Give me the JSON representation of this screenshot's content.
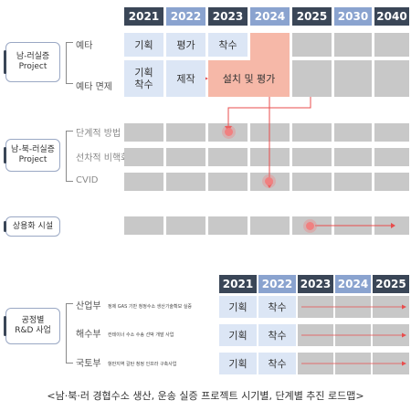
{
  "top_years": [
    "2021",
    "2022",
    "2023",
    "2024",
    "2025",
    "2030",
    "2040"
  ],
  "bottom_years": [
    "2021",
    "2022",
    "2023",
    "2024",
    "2025"
  ],
  "sections": {
    "s1": {
      "label_line1": "남-러실증",
      "label_line2": "Project",
      "rows": [
        "예타",
        "예타 면제"
      ]
    },
    "s2": {
      "label_line1": "남-북-러실증",
      "label_line2": "Project",
      "rows": [
        "단계적 방법",
        "선차적 비핵화",
        "CVID"
      ]
    },
    "s3": {
      "label": "상용화 시설"
    },
    "s4": {
      "label_line1": "공정별",
      "label_line2": "R&D 사업",
      "rows": [
        {
          "ministry": "산업부",
          "desc": "정제 GAS 기반 청정수소 생산기술확보 실증"
        },
        {
          "ministry": "해수부",
          "desc": "컨테이너 수소 수송 선박 개발 사업"
        },
        {
          "ministry": "국토부",
          "desc": "항만지역 갈탄 청정 인프라 구축사업"
        }
      ]
    }
  },
  "cells": {
    "r1": [
      "기획",
      "평가",
      "착수"
    ],
    "r2_c1": "기획",
    "r2_c1b": "착수",
    "r2_c2": "제작",
    "r2_pink": "설치 및 평가",
    "bottom": [
      [
        "기획",
        "착수"
      ],
      [
        "기획",
        "착수"
      ],
      [
        "기획",
        "착수"
      ]
    ]
  },
  "caption": "<남·북·러 경협수소 생산, 운송 실증 프로젝트 시기별, 단계별 추진 로드맵>",
  "colors": {
    "dark_header": "#3a4657",
    "light_header": "#8aa3cf",
    "cell_grey": "#c8c8c8",
    "cell_blue": "#dce6f5",
    "cell_pink": "#f6b8a8",
    "arrow": "#e84d4d"
  }
}
